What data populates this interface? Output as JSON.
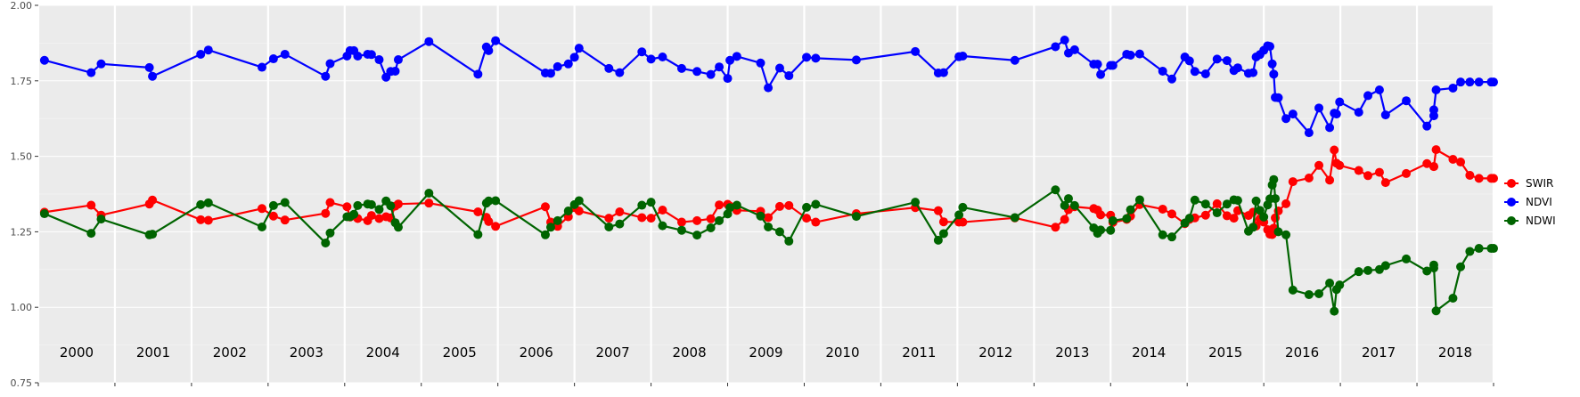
{
  "chart_data": {
    "type": "line",
    "title": "",
    "xlabel": "",
    "ylabel": "",
    "xlim": [
      2000,
      2019
    ],
    "ylim": [
      0.75,
      2.0
    ],
    "yticks": [
      0.75,
      1.0,
      1.25,
      1.5,
      1.75,
      2.0
    ],
    "ytick_labels": [
      "0.75",
      "1.00",
      "1.25",
      "1.50",
      "1.75",
      "2.00"
    ],
    "year_labels": [
      "2000",
      "2001",
      "2002",
      "2003",
      "2004",
      "2005",
      "2006",
      "2007",
      "2008",
      "2009",
      "2010",
      "2011",
      "2012",
      "2013",
      "2014",
      "2015",
      "2016",
      "2017",
      "2018"
    ],
    "grid": "on, vertical white lines at year boundaries, horizontal white gridlines",
    "legend_position": "right",
    "colors": {
      "panel": "#ebebeb",
      "grid": "#ffffff",
      "axis_text": "#4d4d4d",
      "year_text": "#000000"
    },
    "series": [
      {
        "name": "SWIR",
        "color": "#ff0000",
        "x": [
          2000.08,
          2000.69,
          2000.82,
          2001.45,
          2001.49,
          2002.12,
          2002.22,
          2002.92,
          2003.07,
          2003.22,
          2003.75,
          2003.81,
          2004.03,
          2004.07,
          2004.12,
          2004.17,
          2004.3,
          2004.35,
          2004.45,
          2004.54,
          2004.6,
          2004.66,
          2004.7,
          2005.1,
          2005.74,
          2005.85,
          2005.88,
          2005.97,
          2006.62,
          2006.69,
          2006.78,
          2006.92,
          2007.0,
          2007.06,
          2007.45,
          2007.59,
          2007.88,
          2008.0,
          2008.15,
          2008.4,
          2008.6,
          2008.78,
          2008.89,
          2009.0,
          2009.03,
          2009.12,
          2009.43,
          2009.53,
          2009.68,
          2009.8,
          2010.03,
          2010.15,
          2010.68,
          2011.45,
          2011.75,
          2011.82,
          2012.02,
          2012.07,
          2012.75,
          2013.28,
          2013.4,
          2013.45,
          2013.53,
          2013.78,
          2013.83,
          2013.87,
          2014.0,
          2014.03,
          2014.21,
          2014.26,
          2014.38,
          2014.68,
          2014.8,
          2014.97,
          2015.03,
          2015.1,
          2015.24,
          2015.39,
          2015.52,
          2015.61,
          2015.66,
          2015.8,
          2015.86,
          2015.9,
          2015.95,
          2016.0,
          2016.05,
          2016.08,
          2016.11,
          2016.13,
          2016.15,
          2016.19,
          2016.29,
          2016.38,
          2016.59,
          2016.72,
          2016.86,
          2016.92,
          2016.95,
          2016.99,
          2017.24,
          2017.36,
          2017.51,
          2017.59,
          2017.86,
          2018.13,
          2018.22,
          2018.22,
          2018.25,
          2018.47,
          2018.57,
          2018.69,
          2018.81,
          2018.97,
          2019.0
        ],
        "values": [
          1.315,
          1.338,
          1.305,
          1.342,
          1.355,
          1.29,
          1.288,
          1.327,
          1.302,
          1.289,
          1.311,
          1.347,
          1.333,
          1.299,
          1.304,
          1.294,
          1.287,
          1.304,
          1.294,
          1.3,
          1.296,
          1.335,
          1.342,
          1.345,
          1.316,
          1.298,
          1.284,
          1.268,
          1.333,
          1.282,
          1.268,
          1.3,
          1.33,
          1.319,
          1.295,
          1.316,
          1.297,
          1.295,
          1.322,
          1.282,
          1.287,
          1.293,
          1.339,
          1.341,
          1.335,
          1.321,
          1.318,
          1.297,
          1.334,
          1.337,
          1.295,
          1.282,
          1.31,
          1.33,
          1.32,
          1.283,
          1.282,
          1.282,
          1.296,
          1.265,
          1.291,
          1.323,
          1.333,
          1.327,
          1.322,
          1.306,
          1.305,
          1.281,
          1.291,
          1.302,
          1.34,
          1.325,
          1.309,
          1.277,
          1.291,
          1.296,
          1.305,
          1.343,
          1.303,
          1.295,
          1.32,
          1.304,
          1.315,
          1.269,
          1.293,
          1.282,
          1.257,
          1.242,
          1.241,
          1.262,
          1.296,
          1.319,
          1.343,
          1.416,
          1.428,
          1.47,
          1.421,
          1.521,
          1.477,
          1.47,
          1.453,
          1.436,
          1.447,
          1.413,
          1.443,
          1.476,
          1.466,
          1.466,
          1.522,
          1.49,
          1.481,
          1.437,
          1.427,
          1.427,
          1.427
        ]
      },
      {
        "name": "NDVI",
        "color": "#0000ff",
        "x": [
          2000.08,
          2000.69,
          2000.82,
          2001.45,
          2001.49,
          2002.12,
          2002.22,
          2002.92,
          2003.07,
          2003.22,
          2003.75,
          2003.81,
          2004.03,
          2004.07,
          2004.12,
          2004.17,
          2004.3,
          2004.35,
          2004.45,
          2004.54,
          2004.6,
          2004.66,
          2004.7,
          2005.1,
          2005.74,
          2005.85,
          2005.88,
          2005.97,
          2006.62,
          2006.69,
          2006.78,
          2006.92,
          2007.0,
          2007.06,
          2007.45,
          2007.59,
          2007.88,
          2008.0,
          2008.15,
          2008.4,
          2008.6,
          2008.78,
          2008.89,
          2009.0,
          2009.03,
          2009.12,
          2009.43,
          2009.53,
          2009.68,
          2009.8,
          2010.03,
          2010.15,
          2010.68,
          2011.45,
          2011.75,
          2011.82,
          2012.02,
          2012.07,
          2012.75,
          2013.28,
          2013.4,
          2013.45,
          2013.53,
          2013.78,
          2013.83,
          2013.87,
          2014.0,
          2014.03,
          2014.21,
          2014.26,
          2014.38,
          2014.68,
          2014.8,
          2014.97,
          2015.03,
          2015.1,
          2015.24,
          2015.39,
          2015.52,
          2015.61,
          2015.66,
          2015.8,
          2015.86,
          2015.9,
          2015.95,
          2016.0,
          2016.05,
          2016.08,
          2016.11,
          2016.13,
          2016.15,
          2016.19,
          2016.29,
          2016.38,
          2016.59,
          2016.72,
          2016.86,
          2016.92,
          2016.95,
          2016.99,
          2017.24,
          2017.36,
          2017.51,
          2017.59,
          2017.86,
          2018.13,
          2018.22,
          2018.22,
          2018.25,
          2018.47,
          2018.57,
          2018.69,
          2018.81,
          2018.97,
          2019.0
        ],
        "values": [
          1.818,
          1.777,
          1.806,
          1.794,
          1.765,
          1.838,
          1.852,
          1.795,
          1.823,
          1.838,
          1.765,
          1.807,
          1.832,
          1.85,
          1.85,
          1.832,
          1.838,
          1.837,
          1.82,
          1.762,
          1.781,
          1.782,
          1.82,
          1.88,
          1.772,
          1.862,
          1.85,
          1.883,
          1.776,
          1.775,
          1.797,
          1.806,
          1.828,
          1.858,
          1.791,
          1.777,
          1.846,
          1.822,
          1.829,
          1.791,
          1.781,
          1.771,
          1.796,
          1.758,
          1.818,
          1.831,
          1.809,
          1.727,
          1.792,
          1.767,
          1.828,
          1.825,
          1.819,
          1.847,
          1.776,
          1.777,
          1.83,
          1.832,
          1.818,
          1.863,
          1.885,
          1.842,
          1.853,
          1.805,
          1.805,
          1.771,
          1.801,
          1.801,
          1.838,
          1.835,
          1.839,
          1.782,
          1.756,
          1.829,
          1.816,
          1.781,
          1.773,
          1.822,
          1.817,
          1.784,
          1.793,
          1.775,
          1.777,
          1.829,
          1.837,
          1.851,
          1.866,
          1.864,
          1.806,
          1.772,
          1.695,
          1.694,
          1.625,
          1.64,
          1.578,
          1.66,
          1.595,
          1.643,
          1.64,
          1.68,
          1.646,
          1.701,
          1.72,
          1.637,
          1.684,
          1.6,
          1.634,
          1.654,
          1.72,
          1.726,
          1.746,
          1.746,
          1.746,
          1.746,
          1.746
        ]
      },
      {
        "name": "NDWI",
        "color": "#006400",
        "x": [
          2000.08,
          2000.69,
          2000.82,
          2001.45,
          2001.49,
          2002.12,
          2002.22,
          2002.92,
          2003.07,
          2003.22,
          2003.75,
          2003.81,
          2004.03,
          2004.07,
          2004.12,
          2004.17,
          2004.3,
          2004.35,
          2004.45,
          2004.54,
          2004.6,
          2004.66,
          2004.7,
          2005.1,
          2005.74,
          2005.85,
          2005.88,
          2005.97,
          2006.62,
          2006.69,
          2006.78,
          2006.92,
          2007.0,
          2007.06,
          2007.45,
          2007.59,
          2007.88,
          2008.0,
          2008.15,
          2008.4,
          2008.6,
          2008.78,
          2008.89,
          2009.0,
          2009.03,
          2009.12,
          2009.43,
          2009.53,
          2009.68,
          2009.8,
          2010.03,
          2010.15,
          2010.68,
          2011.45,
          2011.75,
          2011.82,
          2012.02,
          2012.07,
          2012.75,
          2013.28,
          2013.4,
          2013.45,
          2013.53,
          2013.78,
          2013.83,
          2013.87,
          2014.0,
          2014.03,
          2014.21,
          2014.26,
          2014.38,
          2014.68,
          2014.8,
          2014.97,
          2015.03,
          2015.1,
          2015.24,
          2015.39,
          2015.52,
          2015.61,
          2015.66,
          2015.8,
          2015.86,
          2015.9,
          2015.95,
          2016.0,
          2016.05,
          2016.08,
          2016.11,
          2016.13,
          2016.15,
          2016.19,
          2016.29,
          2016.38,
          2016.59,
          2016.72,
          2016.86,
          2016.92,
          2016.95,
          2016.99,
          2017.24,
          2017.36,
          2017.51,
          2017.59,
          2017.86,
          2018.13,
          2018.22,
          2018.22,
          2018.25,
          2018.47,
          2018.57,
          2018.69,
          2018.81,
          2018.97,
          2019.0
        ],
        "values": [
          1.31,
          1.245,
          1.292,
          1.24,
          1.242,
          1.34,
          1.346,
          1.266,
          1.337,
          1.347,
          1.213,
          1.246,
          1.3,
          1.3,
          1.308,
          1.337,
          1.342,
          1.34,
          1.324,
          1.352,
          1.336,
          1.28,
          1.265,
          1.378,
          1.241,
          1.345,
          1.352,
          1.353,
          1.24,
          1.265,
          1.287,
          1.319,
          1.34,
          1.353,
          1.266,
          1.276,
          1.338,
          1.348,
          1.27,
          1.255,
          1.239,
          1.263,
          1.287,
          1.309,
          1.33,
          1.338,
          1.302,
          1.266,
          1.25,
          1.219,
          1.331,
          1.341,
          1.301,
          1.348,
          1.222,
          1.244,
          1.306,
          1.331,
          1.297,
          1.389,
          1.337,
          1.36,
          1.337,
          1.263,
          1.245,
          1.256,
          1.255,
          1.287,
          1.294,
          1.323,
          1.356,
          1.24,
          1.233,
          1.279,
          1.295,
          1.355,
          1.342,
          1.313,
          1.342,
          1.356,
          1.354,
          1.252,
          1.265,
          1.352,
          1.321,
          1.299,
          1.339,
          1.359,
          1.405,
          1.423,
          1.36,
          1.25,
          1.24,
          1.057,
          1.042,
          1.045,
          1.08,
          0.987,
          1.059,
          1.074,
          1.118,
          1.122,
          1.125,
          1.138,
          1.16,
          1.12,
          1.13,
          1.14,
          0.988,
          1.03,
          1.134,
          1.185,
          1.195,
          1.195,
          1.195
        ]
      }
    ]
  }
}
